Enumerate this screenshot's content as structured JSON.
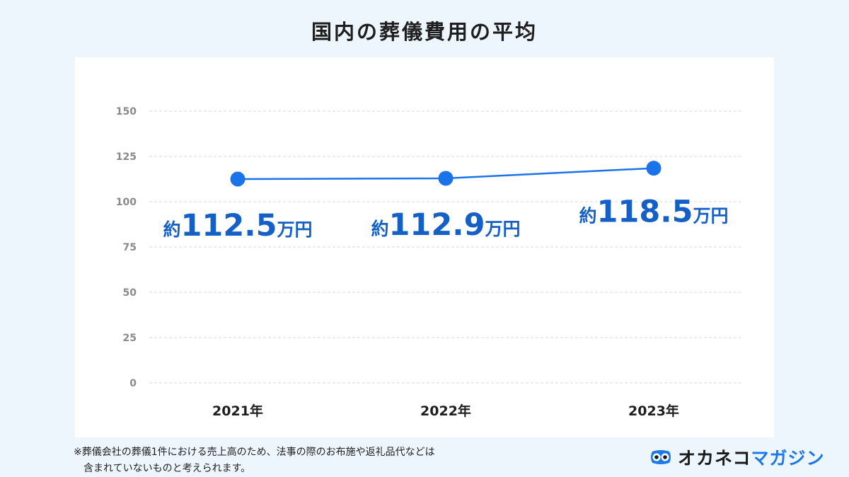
{
  "title": "国内の葬儀費用の平均",
  "chart_data": {
    "type": "line",
    "categories": [
      "2021年",
      "2022年",
      "2023年"
    ],
    "values": [
      112.5,
      112.9,
      118.5
    ],
    "data_labels": [
      {
        "prefix": "約",
        "number": "112.5",
        "suffix": "万円"
      },
      {
        "prefix": "約",
        "number": "112.9",
        "suffix": "万円"
      },
      {
        "prefix": "約",
        "number": "118.5",
        "suffix": "万円"
      }
    ],
    "yticks": [
      0,
      25,
      50,
      75,
      100,
      125,
      150
    ],
    "ylim": [
      0,
      150
    ],
    "grid": true,
    "line_color": "#1a73e8",
    "label_color": "#1560c7"
  },
  "footnote": {
    "line1": "※葬儀会社の葬儀1件における売上高のため、法事の際のお布施や返礼品代などは",
    "line2": "含まれていないものと考えられます。"
  },
  "logo": {
    "icon": "owl-icon",
    "part1": "オカネコ",
    "part2": "マガジン",
    "color_dark": "#1a1a1a",
    "color_blue": "#1e78e6"
  }
}
